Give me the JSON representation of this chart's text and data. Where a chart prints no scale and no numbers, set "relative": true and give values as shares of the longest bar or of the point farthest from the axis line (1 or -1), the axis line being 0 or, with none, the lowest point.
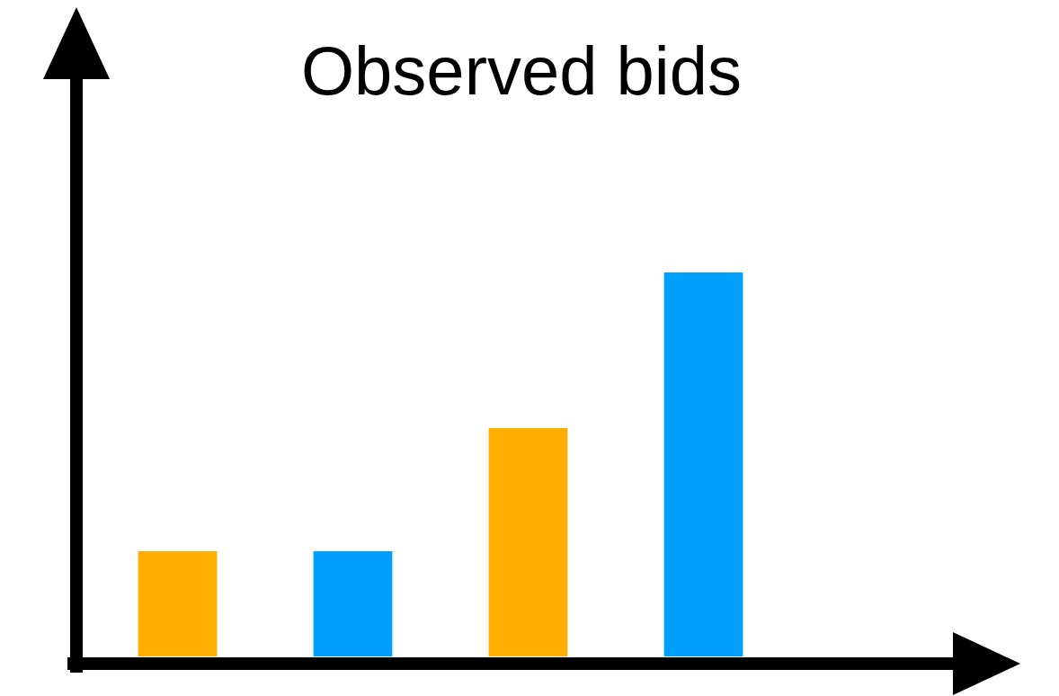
{
  "chart_data": {
    "type": "bar",
    "title": "Observed bids",
    "relative": true,
    "categories": [
      null,
      null,
      null,
      null
    ],
    "values": [
      0.274,
      0.274,
      0.595,
      1
    ],
    "colors": [
      "#ffad00",
      "#009ffd",
      "#ffad00",
      "#009ffd"
    ],
    "legend": false
  }
}
